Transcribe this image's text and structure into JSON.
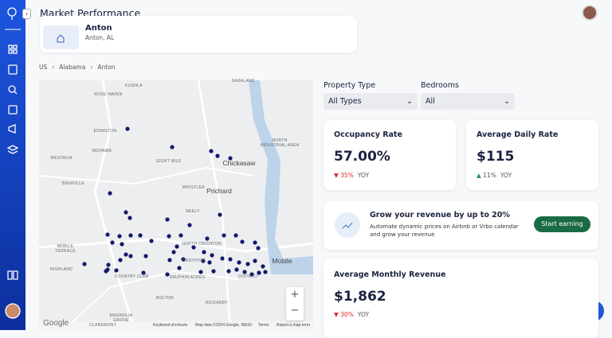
{
  "header": {
    "title": "Market Performance"
  },
  "listing": {
    "name": "Anton",
    "location": "Anton, AL"
  },
  "breadcrumb": [
    "US",
    "Alabama",
    "Anton"
  ],
  "map": {
    "labels": [
      "SARALAND",
      "KUSHLA",
      "ROSE HAVEN",
      "EDINGTON",
      "MOHAWK",
      "WESTAVIA",
      "EIGHT MILE",
      "Chickasaw",
      "NORTH",
      "INDUSTRIAL AREA",
      "BIENVILLE",
      "WHISTLER",
      "Prichard",
      "NEELY",
      "NORTH CRICHTON",
      "MOBILE",
      "TERRACE",
      "HIGHLAND",
      "CRICHTON",
      "Mobile",
      "COUNTRY CLUB",
      "DAUPHIN ACRES",
      "DISTRICT",
      "BOLTON",
      "RICKARBY",
      "MAGNOLIA",
      "GROVE",
      "CLAREMONT"
    ],
    "logo": "Google",
    "zoom_in": "+",
    "zoom_out": "−",
    "footer": [
      "Keyboard shortcuts",
      "Map data ©2024 Google, INEGI",
      "Terms",
      "Report a map error"
    ]
  },
  "filters": [
    {
      "label": "Property Type",
      "value": "All Types"
    },
    {
      "label": "Bedrooms",
      "value": "All"
    }
  ],
  "metrics": [
    {
      "title": "Occupancy Rate",
      "value": "57.00%",
      "change": "35%",
      "period": "YOY",
      "direction": "down"
    },
    {
      "title": "Average Daily Rate",
      "value": "$115",
      "change": "11%",
      "period": "YOY",
      "direction": "up"
    },
    {
      "title": "Average Monthly Revenue",
      "value": "$1,862",
      "change": "30%",
      "period": "YOY",
      "direction": "down"
    }
  ],
  "promo": {
    "title": "Grow your revenue by up to 20%",
    "text": "Automate dynamic prices on Airbnb or Vrbo calendar and grow your revenue",
    "button": "Start earning"
  }
}
